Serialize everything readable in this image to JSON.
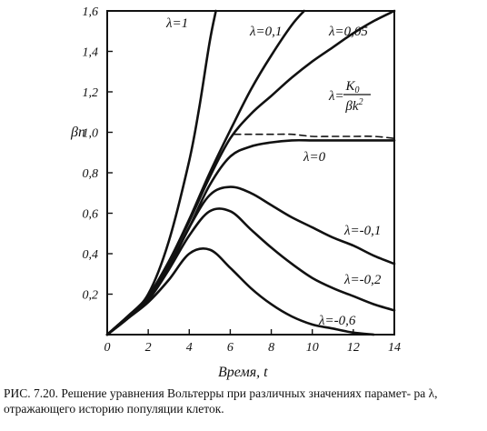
{
  "caption": "РИС. 7.20. Решение уравнения Вольтерры при различных значениях парамет- ра λ, отражающего историю популяции клеток.",
  "chart_data": {
    "type": "line",
    "title": "",
    "xlabel": "Время, t",
    "ylabel": "βn",
    "xlim": [
      0,
      14
    ],
    "ylim": [
      0,
      1.6
    ],
    "x_ticks": [
      "0",
      "2",
      "4",
      "6",
      "8",
      "10",
      "12",
      "14"
    ],
    "y_ticks": [
      "0,2",
      "0,4",
      "0,6",
      "0,8",
      "1,0",
      "1,2",
      "1,4",
      "1,6"
    ],
    "grid": false,
    "series": [
      {
        "name": "λ=1",
        "x": [
          0,
          1,
          2,
          3,
          4,
          4.5,
          5,
          5.3
        ],
        "y": [
          0,
          0.09,
          0.2,
          0.46,
          0.86,
          1.13,
          1.45,
          1.6
        ]
      },
      {
        "name": "λ=0,1",
        "x": [
          0,
          1,
          2,
          3,
          4,
          5,
          6,
          7,
          8,
          9,
          9.6
        ],
        "y": [
          0,
          0.09,
          0.19,
          0.36,
          0.57,
          0.8,
          1.01,
          1.21,
          1.38,
          1.53,
          1.6
        ]
      },
      {
        "name": "λ=0,05",
        "x": [
          0,
          1,
          2,
          3,
          4,
          5,
          6,
          7,
          8,
          9,
          10,
          11,
          12,
          13,
          14
        ],
        "y": [
          0,
          0.09,
          0.19,
          0.36,
          0.56,
          0.78,
          0.97,
          1.09,
          1.18,
          1.27,
          1.35,
          1.42,
          1.49,
          1.55,
          1.6
        ]
      },
      {
        "name": "λ=0",
        "x": [
          0,
          1,
          2,
          3,
          4,
          5,
          6,
          7,
          8,
          9,
          10,
          11,
          12,
          13,
          14
        ],
        "y": [
          0,
          0.09,
          0.18,
          0.34,
          0.53,
          0.74,
          0.88,
          0.93,
          0.95,
          0.96,
          0.96,
          0.96,
          0.96,
          0.96,
          0.96
        ]
      },
      {
        "name": "λ=K₀/βk²",
        "x": [
          6.2,
          7,
          8,
          9,
          10,
          11,
          12,
          13,
          14
        ],
        "y": [
          0.99,
          0.99,
          0.99,
          0.99,
          0.98,
          0.98,
          0.98,
          0.98,
          0.97
        ],
        "dashed": true
      },
      {
        "name": "λ=-0,1",
        "x": [
          0,
          1,
          2,
          3,
          4,
          5,
          6,
          7,
          8,
          9,
          10,
          11,
          12,
          13,
          14
        ],
        "y": [
          0,
          0.08,
          0.18,
          0.33,
          0.53,
          0.69,
          0.73,
          0.7,
          0.64,
          0.58,
          0.53,
          0.48,
          0.44,
          0.39,
          0.35
        ]
      },
      {
        "name": "λ=-0,2",
        "x": [
          0,
          1,
          2,
          3,
          4,
          5,
          6,
          7,
          8,
          9,
          10,
          11,
          12,
          13,
          14
        ],
        "y": [
          0,
          0.08,
          0.17,
          0.32,
          0.49,
          0.61,
          0.61,
          0.52,
          0.43,
          0.35,
          0.28,
          0.23,
          0.19,
          0.15,
          0.12
        ]
      },
      {
        "name": "λ=-0,6",
        "x": [
          0,
          1,
          2,
          3,
          4,
          5,
          6,
          7,
          8,
          9,
          10,
          11,
          12,
          13
        ],
        "y": [
          0,
          0.08,
          0.16,
          0.27,
          0.4,
          0.42,
          0.33,
          0.23,
          0.15,
          0.09,
          0.05,
          0.03,
          0.01,
          0
        ]
      }
    ],
    "labels": {
      "l1": {
        "lambda": "λ",
        "value": "=1"
      },
      "l01": {
        "lambda": "λ",
        "value": "=0,1"
      },
      "l005": {
        "lambda": "λ",
        "value": "=0,05"
      },
      "lk": {
        "lambda": "λ",
        "eq": "=",
        "numerator": "K",
        "numerator_sub": "0",
        "denominator": "βk",
        "denominator_sup": "2"
      },
      "l0": {
        "lambda": "λ",
        "value": "=0"
      },
      "lm01": {
        "lambda": "λ",
        "value": "=-0,1"
      },
      "lm02": {
        "lambda": "λ",
        "value": "=-0,2"
      },
      "lm06": {
        "lambda": "λ",
        "value": "=-0,6"
      }
    }
  }
}
